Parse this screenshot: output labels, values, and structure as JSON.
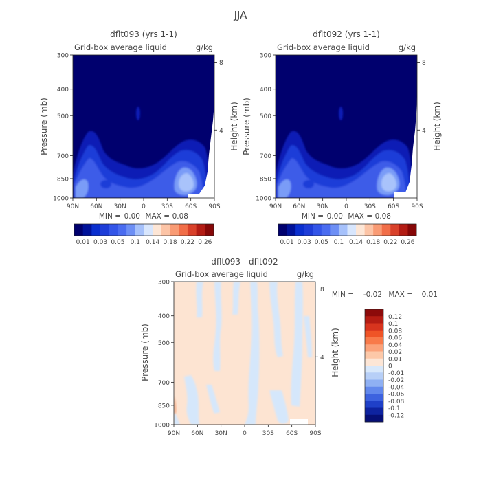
{
  "figure_title": "JJA",
  "colors": {
    "text": "#444444",
    "background": "#ffffff",
    "field_dark": "#00006e",
    "field_mid": "#1e3dd8",
    "field_light": "#8fb2ff",
    "diff_positive": "#fde2cf",
    "diff_negative": "#d5e7fb",
    "zero_gap": "#ffffff"
  },
  "chart_data": [
    {
      "type": "heatmap",
      "title": "dflt093 (yrs 1-1)",
      "subtitle": "Grid-box average liquid",
      "units": "g/kg",
      "ylabel": "Pressure (mb)",
      "y2label": "Height (km)",
      "x_ticks": [
        "90N",
        "60N",
        "30N",
        "0",
        "30S",
        "60S",
        "90S"
      ],
      "x_range": [
        90,
        -90
      ],
      "y_ticks": [
        300,
        400,
        500,
        700,
        850,
        1000
      ],
      "y_range": [
        1000,
        300
      ],
      "y_scale": "log",
      "y2_ticks": [
        8,
        4
      ],
      "min_label": "MIN =",
      "min_value": "0.00",
      "max_label": "MAX =",
      "max_value": "0.08",
      "colorbar_labels": [
        "0.01",
        "0.03",
        "0.05",
        "0.1",
        "0.14",
        "0.18",
        "0.22",
        "0.26"
      ],
      "colorbar_colors": [
        "#00006e",
        "#00129a",
        "#0a2fcf",
        "#1e3dd8",
        "#3355e8",
        "#4a6cf0",
        "#6d8ff5",
        "#a6c1fb",
        "#d8e6fd",
        "#fde6d6",
        "#fcc4a6",
        "#f99b74",
        "#f16e48",
        "#d9412a",
        "#b31c14",
        "#860707"
      ],
      "colorbar_orientation": "horizontal",
      "colorbar_direction": "left-to-right",
      "grid": false
    },
    {
      "type": "heatmap",
      "title": "dflt092 (yrs 1-1)",
      "subtitle": "Grid-box average liquid",
      "units": "g/kg",
      "ylabel": "Pressure (mb)",
      "y2label": "Height (km)",
      "x_ticks": [
        "90N",
        "60N",
        "30N",
        "0",
        "30S",
        "60S",
        "90S"
      ],
      "x_range": [
        90,
        -90
      ],
      "y_ticks": [
        300,
        400,
        500,
        700,
        850,
        1000
      ],
      "y_range": [
        1000,
        300
      ],
      "y_scale": "log",
      "y2_ticks": [
        8,
        4
      ],
      "min_label": "MIN =",
      "min_value": "0.00",
      "max_label": "MAX =",
      "max_value": "0.08",
      "colorbar_labels": [
        "0.01",
        "0.03",
        "0.05",
        "0.1",
        "0.14",
        "0.18",
        "0.22",
        "0.26"
      ],
      "colorbar_colors": [
        "#00006e",
        "#00129a",
        "#0a2fcf",
        "#1e3dd8",
        "#3355e8",
        "#4a6cf0",
        "#6d8ff5",
        "#a6c1fb",
        "#d8e6fd",
        "#fde6d6",
        "#fcc4a6",
        "#f99b74",
        "#f16e48",
        "#d9412a",
        "#b31c14",
        "#860707"
      ],
      "colorbar_orientation": "horizontal",
      "colorbar_direction": "left-to-right",
      "grid": false
    },
    {
      "type": "heatmap",
      "title": "dflt093 - dflt092",
      "subtitle": "Grid-box average liquid",
      "units": "g/kg",
      "ylabel": "Pressure (mb)",
      "y2label": "Height (km)",
      "x_ticks": [
        "90N",
        "60N",
        "30N",
        "0",
        "30S",
        "60S",
        "90S"
      ],
      "x_range": [
        90,
        -90
      ],
      "y_ticks": [
        300,
        400,
        500,
        700,
        850,
        1000
      ],
      "y_range": [
        1000,
        300
      ],
      "y_scale": "log",
      "y2_ticks": [
        8,
        4
      ],
      "min_label": "MIN =",
      "min_value": "-0.02",
      "max_label": "MAX =",
      "max_value": "0.01",
      "colorbar_labels": [
        "0.12",
        "0.1",
        "0.08",
        "0.06",
        "0.04",
        "0.02",
        "0.01",
        "0",
        "-0.01",
        "-0.02",
        "-0.04",
        "-0.06",
        "-0.08",
        "-0.1",
        "-0.12"
      ],
      "colorbar_colors": [
        "#8c0a0a",
        "#b51c13",
        "#d8341e",
        "#ef5427",
        "#f87a4a",
        "#fba27a",
        "#fdc8a8",
        "#fde6d6",
        "#d8e8fb",
        "#b7cff7",
        "#8fb0f3",
        "#6288ec",
        "#3d62df",
        "#1f40c8",
        "#0e23a0",
        "#060f76"
      ],
      "colorbar_orientation": "vertical",
      "colorbar_direction": "top-to-bottom",
      "grid": false
    }
  ]
}
